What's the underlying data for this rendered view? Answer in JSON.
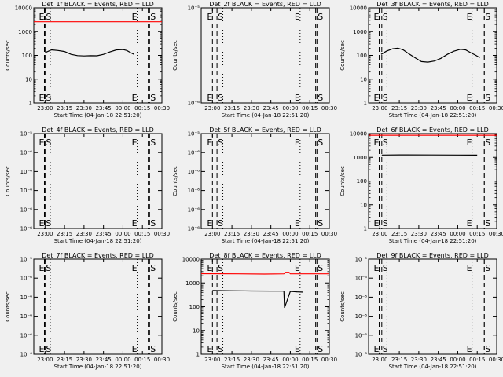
{
  "figure": {
    "background": "#f0f0f0",
    "event_color": "#000000",
    "lld_color": "#ff0000"
  },
  "chart_data": [
    {
      "type": "line",
      "title": "Det_1f BLACK = Events, RED = LLD",
      "ylabel": "Counts/sec",
      "xlabel": "Start Time (04-Jan-18 22:51:20)",
      "xlim": [
        "22:51:20",
        "00:30:00"
      ],
      "xticks": [
        "23:00",
        "23:15",
        "23:30",
        "23:45",
        "00:00",
        "00:15",
        "00:30"
      ],
      "ylog": true,
      "ylim": [
        1,
        10000
      ],
      "yticks": [
        "1",
        "10",
        "100",
        "1000",
        "10000"
      ],
      "vlines": [
        {
          "t": "22:59:30",
          "style": "dashed",
          "label": "E"
        },
        {
          "t": "23:00:00",
          "style": "dashed",
          "label": "S"
        },
        {
          "t": "23:04:00",
          "style": "dotted",
          "label": ""
        },
        {
          "t": "00:11:00",
          "style": "dotted",
          "label": "E"
        },
        {
          "t": "00:19:30",
          "style": "dashed",
          "label": ""
        },
        {
          "t": "00:20:30",
          "style": "dashed",
          "label": "S"
        }
      ],
      "series": [
        {
          "role": "lld",
          "color": "#ff0000",
          "points": [
            [
              "22:51:20",
              2600
            ],
            [
              "00:30:00",
              2600
            ]
          ]
        },
        {
          "role": "events",
          "color": "#000000",
          "points": [
            [
              "23:00:00",
              130
            ],
            [
              "23:05:00",
              170
            ],
            [
              "23:10:00",
              160
            ],
            [
              "23:15:00",
              145
            ],
            [
              "23:20:00",
              110
            ],
            [
              "23:25:00",
              98
            ],
            [
              "23:30:00",
              95
            ],
            [
              "23:35:00",
              97
            ],
            [
              "23:40:00",
              96
            ],
            [
              "23:45:00",
              110
            ],
            [
              "23:50:00",
              140
            ],
            [
              "23:55:00",
              170
            ],
            [
              "00:00:00",
              175
            ],
            [
              "00:03:00",
              160
            ],
            [
              "00:06:00",
              130
            ],
            [
              "00:08:30",
              110
            ]
          ]
        }
      ]
    },
    {
      "type": "line",
      "title": "Det_2f BLACK = Events, RED = LLD",
      "ylabel": "Counts/sec",
      "xlabel": "Start Time (04-Jan-18 22:51:20)",
      "xlim": [
        "22:51:20",
        "00:30:00"
      ],
      "xticks": [
        "23:00",
        "23:15",
        "23:30",
        "23:45",
        "00:00",
        "00:15",
        "00:30"
      ],
      "ylog": true,
      "ylim": [
        1e-06,
        1e-05
      ],
      "yticks": [
        "10⁻⁶",
        "10⁻⁵"
      ],
      "vlines": [
        {
          "t": "23:00:00",
          "style": "dashed",
          "label": "E"
        },
        {
          "t": "23:03:30",
          "style": "dashed",
          "label": "S"
        },
        {
          "t": "23:08:00",
          "style": "dotted",
          "label": ""
        },
        {
          "t": "00:07:30",
          "style": "dotted",
          "label": "E"
        },
        {
          "t": "00:19:30",
          "style": "dashed",
          "label": ""
        },
        {
          "t": "00:20:30",
          "style": "dashed",
          "label": "S"
        }
      ],
      "series": []
    },
    {
      "type": "line",
      "title": "Det_3f BLACK = Events, RED = LLD",
      "ylabel": "Counts/sec",
      "xlabel": "Start Time (04-Jan-18 22:51:20)",
      "xlim": [
        "22:51:20",
        "00:30:00"
      ],
      "xticks": [
        "23:00",
        "23:15",
        "23:30",
        "23:45",
        "00:00",
        "00:15",
        "00:30"
      ],
      "ylog": true,
      "ylim": [
        1,
        10000
      ],
      "yticks": [
        "1",
        "10",
        "100",
        "1000",
        "10000"
      ],
      "vlines": [
        {
          "t": "22:59:30",
          "style": "dashed",
          "label": "E"
        },
        {
          "t": "23:01:30",
          "style": "dashed",
          "label": "S"
        },
        {
          "t": "23:05:30",
          "style": "dotted",
          "label": ""
        },
        {
          "t": "00:11:00",
          "style": "dotted",
          "label": "E"
        },
        {
          "t": "00:19:30",
          "style": "dashed",
          "label": ""
        },
        {
          "t": "00:20:30",
          "style": "dashed",
          "label": "S"
        }
      ],
      "series": [
        {
          "role": "events",
          "color": "#000000",
          "points": [
            [
              "23:01:00",
              110
            ],
            [
              "23:05:00",
              150
            ],
            [
              "23:10:00",
              190
            ],
            [
              "23:14:00",
              200
            ],
            [
              "23:18:00",
              170
            ],
            [
              "23:22:00",
              120
            ],
            [
              "23:27:00",
              80
            ],
            [
              "23:32:00",
              55
            ],
            [
              "23:37:00",
              52
            ],
            [
              "23:42:00",
              58
            ],
            [
              "23:47:00",
              75
            ],
            [
              "23:52:00",
              110
            ],
            [
              "23:57:00",
              150
            ],
            [
              "00:02:00",
              180
            ],
            [
              "00:06:00",
              170
            ],
            [
              "00:10:00",
              130
            ],
            [
              "00:14:00",
              100
            ],
            [
              "00:17:00",
              80
            ]
          ]
        }
      ]
    },
    {
      "type": "line",
      "title": "Det_4f BLACK = Events, RED = LLD",
      "ylabel": "Counts/sec",
      "xlabel": "Start Time (04-Jan-18 22:51:20)",
      "xlim": [
        "22:51:20",
        "00:30:00"
      ],
      "xticks": [
        "23:00",
        "23:15",
        "23:30",
        "23:45",
        "00:00",
        "00:15",
        "00:30"
      ],
      "ylog": true,
      "ylim": [
        1e-06,
        1e-05
      ],
      "yticks": [
        "10⁻⁶",
        "10⁻⁶",
        "10⁻⁶",
        "10⁻⁶",
        "10⁻⁶",
        "10⁻⁵"
      ],
      "vlines": [
        {
          "t": "22:59:30",
          "style": "dashed",
          "label": "E"
        },
        {
          "t": "23:00:00",
          "style": "dashed",
          "label": "S"
        },
        {
          "t": "23:04:00",
          "style": "dotted",
          "label": ""
        },
        {
          "t": "00:11:00",
          "style": "dotted",
          "label": "E"
        },
        {
          "t": "00:19:30",
          "style": "dashed",
          "label": ""
        },
        {
          "t": "00:20:30",
          "style": "dashed",
          "label": "S"
        }
      ],
      "series": []
    },
    {
      "type": "line",
      "title": "Det_5f BLACK = Events, RED = LLD",
      "ylabel": "Counts/sec",
      "xlabel": "Start Time (04-Jan-18 22:51:20)",
      "xlim": [
        "22:51:20",
        "00:30:00"
      ],
      "xticks": [
        "23:00",
        "23:15",
        "23:30",
        "23:45",
        "00:00",
        "00:15",
        "00:30"
      ],
      "ylog": true,
      "ylim": [
        1e-06,
        1e-05
      ],
      "yticks": [
        "10⁻⁶",
        "10⁻⁶",
        "10⁻⁶",
        "10⁻⁶",
        "10⁻⁶",
        "10⁻⁵"
      ],
      "vlines": [
        {
          "t": "23:00:00",
          "style": "dashed",
          "label": "E"
        },
        {
          "t": "23:03:30",
          "style": "dashed",
          "label": "S"
        },
        {
          "t": "23:08:00",
          "style": "dotted",
          "label": ""
        },
        {
          "t": "00:07:30",
          "style": "dotted",
          "label": "E"
        },
        {
          "t": "00:19:30",
          "style": "dashed",
          "label": ""
        },
        {
          "t": "00:20:30",
          "style": "dashed",
          "label": "S"
        }
      ],
      "series": []
    },
    {
      "type": "line",
      "title": "Det_6f BLACK = Events, RED = LLD",
      "ylabel": "Counts/sec",
      "xlabel": "Start Time (04-Jan-18 22:51:20)",
      "xlim": [
        "22:51:20",
        "00:30:00"
      ],
      "xticks": [
        "23:00",
        "23:15",
        "23:30",
        "23:45",
        "00:00",
        "00:15",
        "00:30"
      ],
      "ylog": true,
      "ylim": [
        1,
        10000
      ],
      "yticks": [
        "1",
        "10",
        "100",
        "1000",
        "10000"
      ],
      "vlines": [
        {
          "t": "22:59:30",
          "style": "dashed",
          "label": "E"
        },
        {
          "t": "23:01:30",
          "style": "dashed",
          "label": "S"
        },
        {
          "t": "23:05:30",
          "style": "dotted",
          "label": ""
        },
        {
          "t": "00:11:00",
          "style": "dotted",
          "label": "E"
        },
        {
          "t": "00:19:30",
          "style": "dashed",
          "label": ""
        },
        {
          "t": "00:20:30",
          "style": "dashed",
          "label": "S"
        }
      ],
      "series": [
        {
          "role": "lld",
          "color": "#ff0000",
          "points": [
            [
              "22:51:20",
              8500
            ],
            [
              "00:30:00",
              8500
            ]
          ]
        },
        {
          "role": "events",
          "color": "#000000",
          "points": [
            [
              "23:01:30",
              1250
            ],
            [
              "23:20:00",
              1270
            ],
            [
              "23:40:00",
              1260
            ],
            [
              "00:00:00",
              1250
            ],
            [
              "00:15:00",
              1240
            ]
          ]
        }
      ]
    },
    {
      "type": "line",
      "title": "Det_7f BLACK = Events, RED = LLD",
      "ylabel": "Counts/sec",
      "xlabel": "Start Time (04-Jan-18 22:51:20)",
      "xlim": [
        "22:51:20",
        "00:30:00"
      ],
      "xticks": [
        "23:00",
        "23:15",
        "23:30",
        "23:45",
        "00:00",
        "00:15",
        "00:30"
      ],
      "ylog": true,
      "ylim": [
        1e-06,
        1e-05
      ],
      "yticks": [
        "10⁻⁶",
        "10⁻⁶",
        "10⁻⁶",
        "10⁻⁶",
        "10⁻⁶",
        "10⁻⁵"
      ],
      "vlines": [
        {
          "t": "22:59:30",
          "style": "dashed",
          "label": "E"
        },
        {
          "t": "23:00:00",
          "style": "dashed",
          "label": "S"
        },
        {
          "t": "23:04:00",
          "style": "dotted",
          "label": ""
        },
        {
          "t": "00:11:00",
          "style": "dotted",
          "label": "E"
        },
        {
          "t": "00:19:30",
          "style": "dashed",
          "label": ""
        },
        {
          "t": "00:20:30",
          "style": "dashed",
          "label": "S"
        }
      ],
      "series": []
    },
    {
      "type": "line",
      "title": "Det_8f BLACK = Events, RED = LLD",
      "ylabel": "Counts/sec",
      "xlabel": "Start Time (04-Jan-18 22:51:20)",
      "xlim": [
        "22:51:20",
        "00:30:00"
      ],
      "xticks": [
        "23:00",
        "23:15",
        "23:30",
        "23:45",
        "00:00",
        "00:15",
        "00:30"
      ],
      "ylog": true,
      "ylim": [
        1,
        10000
      ],
      "yticks": [
        "1",
        "10",
        "100",
        "1000",
        "10000"
      ],
      "vlines": [
        {
          "t": "23:00:00",
          "style": "dashed",
          "label": "E"
        },
        {
          "t": "23:03:30",
          "style": "dashed",
          "label": "S"
        },
        {
          "t": "23:08:00",
          "style": "dotted",
          "label": ""
        },
        {
          "t": "00:07:30",
          "style": "dotted",
          "label": "E"
        },
        {
          "t": "00:19:30",
          "style": "dashed",
          "label": ""
        },
        {
          "t": "00:20:30",
          "style": "dashed",
          "label": "S"
        }
      ],
      "series": [
        {
          "role": "lld",
          "color": "#ff0000",
          "points": [
            [
              "22:51:20",
              2450
            ],
            [
              "23:20:00",
              2400
            ],
            [
              "23:40:00",
              2350
            ],
            [
              "23:55:00",
              2400
            ],
            [
              "23:56:00",
              2800
            ],
            [
              "23:59:00",
              2800
            ],
            [
              "00:00:00",
              2400
            ],
            [
              "00:30:00",
              2400
            ]
          ]
        },
        {
          "role": "events",
          "color": "#000000",
          "points": [
            [
              "23:00:00",
              480
            ],
            [
              "23:15:00",
              470
            ],
            [
              "23:30:00",
              460
            ],
            [
              "23:45:00",
              455
            ],
            [
              "23:55:00",
              450
            ],
            [
              "23:55:30",
              90
            ],
            [
              "00:00:00",
              440
            ],
            [
              "00:05:00",
              420
            ],
            [
              "00:10:00",
              410
            ]
          ]
        }
      ]
    },
    {
      "type": "line",
      "title": "Det_9f BLACK = Events, RED = LLD",
      "ylabel": "Counts/sec",
      "xlabel": "Start Time (04-Jan-18 22:51:20)",
      "xlim": [
        "22:51:20",
        "00:30:00"
      ],
      "xticks": [
        "23:00",
        "23:15",
        "23:30",
        "23:45",
        "00:00",
        "00:15",
        "00:30"
      ],
      "ylog": true,
      "ylim": [
        1e-06,
        1e-05
      ],
      "yticks": [
        "10⁻⁶",
        "10⁻⁶",
        "10⁻⁶",
        "10⁻⁶",
        "10⁻⁶",
        "10⁻⁵"
      ],
      "vlines": [
        {
          "t": "22:59:30",
          "style": "dashed",
          "label": "E"
        },
        {
          "t": "23:01:30",
          "style": "dashed",
          "label": "S"
        },
        {
          "t": "23:05:30",
          "style": "dotted",
          "label": ""
        },
        {
          "t": "00:11:00",
          "style": "dotted",
          "label": "E"
        },
        {
          "t": "00:19:30",
          "style": "dashed",
          "label": ""
        },
        {
          "t": "00:20:30",
          "style": "dashed",
          "label": "S"
        }
      ],
      "series": []
    }
  ]
}
